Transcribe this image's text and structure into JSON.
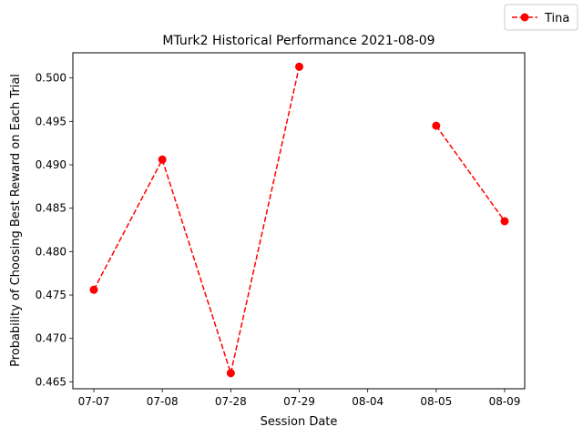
{
  "chart_data": {
    "type": "line",
    "title": "MTurk2 Historical Performance 2021-08-09",
    "xlabel": "Session Date",
    "ylabel": "Probability of Choosing Best Reward on Each Trial",
    "categories": [
      "07-07",
      "07-08",
      "07-28",
      "07-29",
      "08-04",
      "08-05",
      "08-09"
    ],
    "yticks": [
      "0.465",
      "0.470",
      "0.475",
      "0.480",
      "0.485",
      "0.490",
      "0.495",
      "0.500"
    ],
    "ylim": [
      0.4642,
      0.5029
    ],
    "grid": false,
    "legend_position": "upper-right-outside",
    "series": [
      {
        "name": "Tina",
        "color": "#ff0000",
        "line_style": "dashed",
        "marker": "circle",
        "values": [
          0.4756,
          0.4906,
          0.466,
          0.5013,
          null,
          0.4945,
          0.4835
        ]
      }
    ]
  }
}
